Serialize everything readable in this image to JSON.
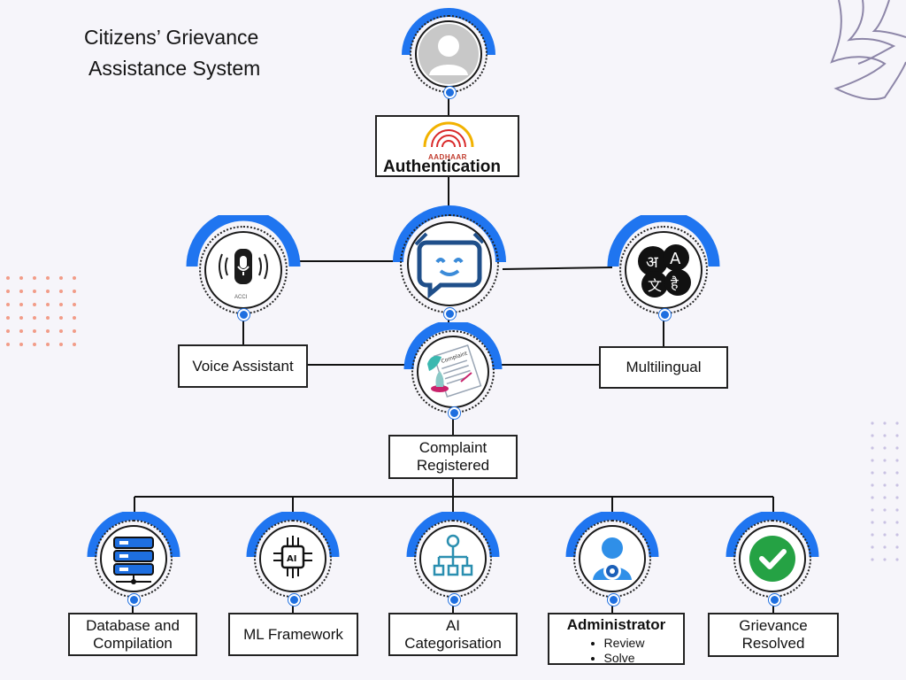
{
  "title": {
    "line1": "Citizens’ Grievance",
    "line2": "Assistance System"
  },
  "authentication": {
    "logo_text": "AADHAAR",
    "label": "Authentication"
  },
  "voice": {
    "label": "Voice Assistant",
    "device_caption": "ACCI"
  },
  "multilingual": {
    "label": "Multilingual",
    "glyphs": [
      "अ",
      "A",
      "文",
      "है"
    ]
  },
  "complaint": {
    "line1": "Complaint",
    "line2": "Registered",
    "doc_text": "Complaint"
  },
  "database": {
    "line1": "Database and",
    "line2": "Compilation"
  },
  "ml": {
    "label": "ML Framework",
    "chip_text": "AI"
  },
  "ai": {
    "line1": "AI",
    "line2": "Categorisation"
  },
  "admin": {
    "title": "Administrator",
    "items": [
      "Review",
      "Solve"
    ]
  },
  "resolved": {
    "line1": "Grievance",
    "line2": "Resolved"
  },
  "colors": {
    "accent": "#1e6fe0",
    "arc": "#1f75f0",
    "background": "#f6f5fa",
    "check": "#25a244",
    "dots_left": "#f29c88",
    "dots_right": "#c9c2e3"
  },
  "icons": {
    "user": "user-avatar-icon",
    "chatbot": "chatbot-face-icon",
    "speaker": "smart-speaker-icon",
    "translate": "language-bubbles-icon",
    "complaint": "complaint-form-icon",
    "database": "server-stack-icon",
    "ml": "ai-chip-icon",
    "ai": "hierarchy-icon",
    "admin": "admin-gear-icon",
    "resolved": "checkmark-icon"
  }
}
